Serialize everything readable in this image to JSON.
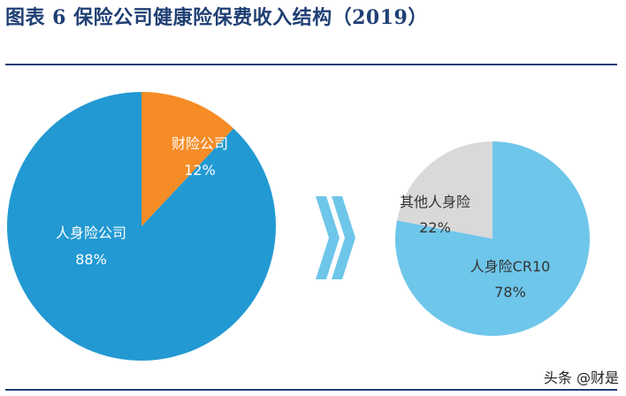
{
  "title": "图表 6  保险公司健康险保费收入结构（2019）",
  "watermark": "头条 @财是",
  "chart_data": [
    {
      "type": "pie",
      "slices": [
        {
          "label": "人身险公司",
          "value": 88,
          "value_label": "88%",
          "color": "#2299d2",
          "label_color": "#ffffff"
        },
        {
          "label": "财险公司",
          "value": 12,
          "value_label": "12%",
          "color": "#f58c26",
          "label_color": "#ffffff"
        }
      ]
    },
    {
      "type": "pie",
      "slices": [
        {
          "label": "人身险CR10",
          "value": 78,
          "value_label": "78%",
          "color": "#6ec6ea",
          "label_color": "#333333"
        },
        {
          "label": "其他人身险",
          "value": 22,
          "value_label": "22%",
          "color": "#d9d9d9",
          "label_color": "#333333"
        }
      ]
    }
  ],
  "colors": {
    "title": "#1f3f74",
    "arrow": "#6ec6ea"
  },
  "icons": {
    "arrow": "double-chevron-right-icon"
  }
}
